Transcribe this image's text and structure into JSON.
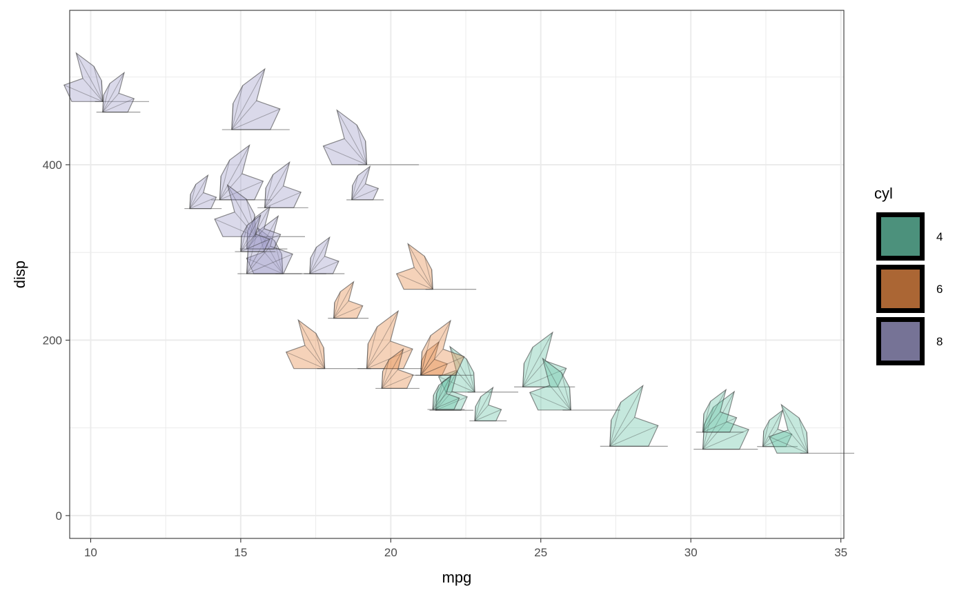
{
  "chart_data": {
    "type": "scatter",
    "glyph": "polygon-glyph",
    "xlabel": "mpg",
    "ylabel": "disp",
    "xlim": [
      9.3,
      35.1
    ],
    "ylim": [
      -26,
      576
    ],
    "x_ticks": [
      10,
      15,
      20,
      25,
      30,
      35
    ],
    "x_tick_labels": [
      "10",
      "15",
      "20",
      "25",
      "30",
      "35"
    ],
    "y_ticks": [
      0,
      200,
      400
    ],
    "y_tick_labels": [
      "0",
      "200",
      "400"
    ],
    "grid": true,
    "legend": {
      "title": "cyl",
      "position": "right",
      "entries": [
        {
          "label": "4",
          "color": "#66c2a5"
        },
        {
          "label": "6",
          "color": "#e48846"
        },
        {
          "label": "8",
          "color": "#9e9ac8"
        }
      ]
    },
    "series": [
      {
        "name": "4",
        "color": "#66c2a5",
        "points": [
          {
            "x": 22.8,
            "y": 108
          },
          {
            "x": 24.4,
            "y": 146.7
          },
          {
            "x": 22.8,
            "y": 140.8
          },
          {
            "x": 32.4,
            "y": 78.7
          },
          {
            "x": 30.4,
            "y": 75.7
          },
          {
            "x": 33.9,
            "y": 71.1
          },
          {
            "x": 21.5,
            "y": 120.1
          },
          {
            "x": 27.3,
            "y": 79
          },
          {
            "x": 26,
            "y": 120.3
          },
          {
            "x": 30.4,
            "y": 95.1
          },
          {
            "x": 21.4,
            "y": 121
          }
        ]
      },
      {
        "name": "6",
        "color": "#e48846",
        "points": [
          {
            "x": 21,
            "y": 160
          },
          {
            "x": 21,
            "y": 160
          },
          {
            "x": 21.4,
            "y": 258
          },
          {
            "x": 18.1,
            "y": 225
          },
          {
            "x": 19.2,
            "y": 167.6
          },
          {
            "x": 17.8,
            "y": 167.6
          },
          {
            "x": 19.7,
            "y": 145
          }
        ]
      },
      {
        "name": "8",
        "color": "#9e9ac8",
        "points": [
          {
            "x": 18.7,
            "y": 360
          },
          {
            "x": 14.3,
            "y": 360
          },
          {
            "x": 16.4,
            "y": 275.8
          },
          {
            "x": 17.3,
            "y": 275.8
          },
          {
            "x": 15.2,
            "y": 275.8
          },
          {
            "x": 10.4,
            "y": 472
          },
          {
            "x": 10.4,
            "y": 460
          },
          {
            "x": 14.7,
            "y": 440
          },
          {
            "x": 15.5,
            "y": 318
          },
          {
            "x": 15.2,
            "y": 304
          },
          {
            "x": 13.3,
            "y": 350
          },
          {
            "x": 19.2,
            "y": 400
          },
          {
            "x": 15.8,
            "y": 351
          },
          {
            "x": 15,
            "y": 301
          }
        ]
      }
    ]
  }
}
